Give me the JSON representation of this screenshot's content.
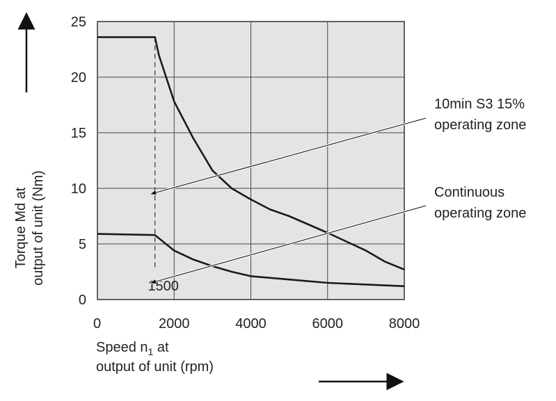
{
  "chart_data": {
    "type": "line",
    "title": "",
    "xlabel": [
      "Speed n",
      "1",
      " at",
      "output of unit (rpm)"
    ],
    "ylabel": [
      "Torque Md at",
      "output of unit (Nm)"
    ],
    "xlim": [
      0,
      8000
    ],
    "ylim": [
      0,
      25
    ],
    "x_ticks": [
      0,
      2000,
      4000,
      6000,
      8000
    ],
    "y_ticks": [
      0,
      5,
      10,
      15,
      20,
      25
    ],
    "grid": true,
    "series": [
      {
        "key": "s3",
        "points": [
          [
            0,
            23.6
          ],
          [
            1500,
            23.6
          ],
          [
            1600,
            22.0
          ],
          [
            2000,
            17.8
          ],
          [
            2500,
            14.5
          ],
          [
            3000,
            11.6
          ],
          [
            3500,
            10.0
          ],
          [
            4000,
            9.0
          ],
          [
            4500,
            8.1
          ],
          [
            5000,
            7.5
          ],
          [
            6000,
            6.0
          ],
          [
            7000,
            4.4
          ],
          [
            7500,
            3.4
          ],
          [
            8000,
            2.7
          ]
        ]
      },
      {
        "key": "continuous",
        "points": [
          [
            0,
            5.9
          ],
          [
            1500,
            5.8
          ],
          [
            2000,
            4.4
          ],
          [
            2500,
            3.6
          ],
          [
            3000,
            3.0
          ],
          [
            3500,
            2.5
          ],
          [
            4000,
            2.1
          ],
          [
            5000,
            1.8
          ],
          [
            6000,
            1.5
          ],
          [
            7000,
            1.35
          ],
          [
            8000,
            1.2
          ]
        ]
      }
    ],
    "annotations": [
      {
        "name": "marker-1500",
        "text": "1500",
        "x": 1500
      },
      {
        "name": "label-s3",
        "lines": [
          "10min S3 15%",
          "operating zone"
        ],
        "arrow_to": [
          1400,
          9.5
        ]
      },
      {
        "name": "label-continuous",
        "lines": [
          "Continuous",
          "operating zone"
        ],
        "arrow_to": [
          1400,
          1.5
        ]
      }
    ]
  }
}
